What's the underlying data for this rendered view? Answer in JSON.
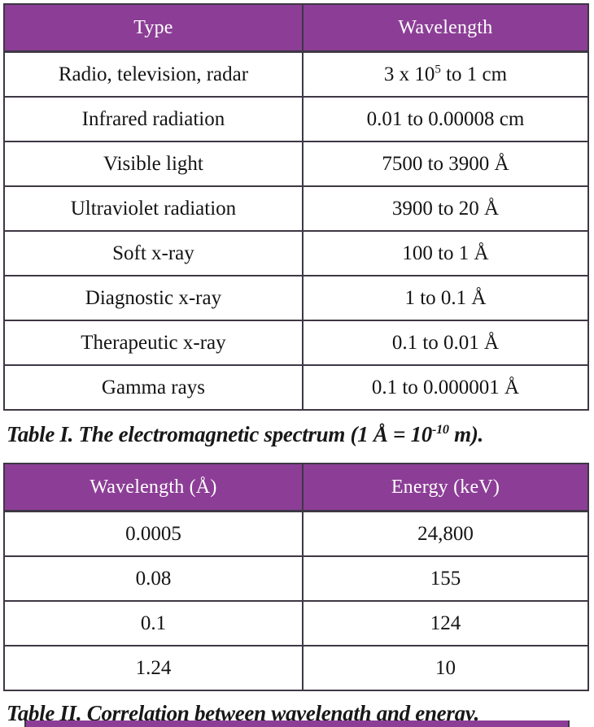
{
  "colors": {
    "header_bg": "#8C3E96",
    "header_text": "#FFFFFF",
    "border": "#3E3744",
    "cell_text": "#141414"
  },
  "table1": {
    "columns": [
      "Type",
      "Wavelength"
    ],
    "rows": [
      [
        "Radio, television, radar",
        "3 x 10^{5} to 1 cm"
      ],
      [
        "Infrared radiation",
        "0.01 to 0.00008 cm"
      ],
      [
        "Visible light",
        "7500 to 3900 Å"
      ],
      [
        "Ultraviolet radiation",
        "3900 to 20 Å"
      ],
      [
        "Soft x-ray",
        "100 to 1 Å"
      ],
      [
        "Diagnostic x-ray",
        "1 to 0.1 Å"
      ],
      [
        "Therapeutic x-ray",
        "0.1 to 0.01 Å"
      ],
      [
        "Gamma rays",
        "0.1 to 0.000001 Å"
      ]
    ],
    "caption": "Table I. The electromagnetic spectrum (1 Å = 10^{-10} m)."
  },
  "table2": {
    "columns": [
      "Wavelength (Å)",
      "Energy (keV)"
    ],
    "rows": [
      [
        "0.0005",
        "24,800"
      ],
      [
        "0.08",
        "155"
      ],
      [
        "0.1",
        "124"
      ],
      [
        "1.24",
        "10"
      ]
    ],
    "caption": "Table II. Correlation between wavelength and energy."
  },
  "chart_data": [
    {
      "type": "table",
      "title": "Table I. The electromagnetic spectrum (1 Å = 10^-10 m).",
      "columns": [
        "Type",
        "Wavelength"
      ],
      "rows": [
        [
          "Radio, television, radar",
          "3 x 10^5 to 1 cm"
        ],
        [
          "Infrared radiation",
          "0.01 to 0.00008 cm"
        ],
        [
          "Visible light",
          "7500 to 3900 Å"
        ],
        [
          "Ultraviolet radiation",
          "3900 to 20 Å"
        ],
        [
          "Soft x-ray",
          "100 to 1 Å"
        ],
        [
          "Diagnostic x-ray",
          "1 to 0.1 Å"
        ],
        [
          "Therapeutic x-ray",
          "0.1 to 0.01 Å"
        ],
        [
          "Gamma rays",
          "0.1 to 0.000001 Å"
        ]
      ]
    },
    {
      "type": "table",
      "title": "Table II. Correlation between wavelength and energy.",
      "columns": [
        "Wavelength (Å)",
        "Energy (keV)"
      ],
      "rows": [
        [
          0.0005,
          24800
        ],
        [
          0.08,
          155
        ],
        [
          0.1,
          124
        ],
        [
          1.24,
          10
        ]
      ]
    }
  ]
}
